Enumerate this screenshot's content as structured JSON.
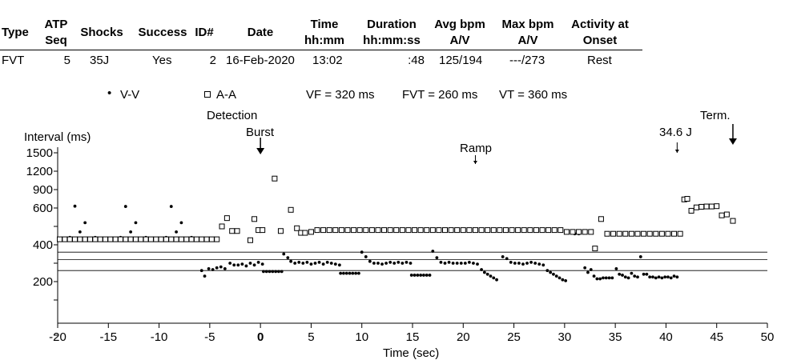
{
  "table": {
    "headers": [
      {
        "line1": "Type",
        "line2": ""
      },
      {
        "line1": "ATP",
        "line2": "Seq"
      },
      {
        "line1": "Shocks",
        "line2": ""
      },
      {
        "line1": "Success",
        "line2": ""
      },
      {
        "line1": "ID#",
        "line2": ""
      },
      {
        "line1": "Date",
        "line2": ""
      },
      {
        "line1": "Time",
        "line2": "hh:mm"
      },
      {
        "line1": "Duration",
        "line2": "hh:mm:ss"
      },
      {
        "line1": "Avg bpm",
        "line2": "A/V"
      },
      {
        "line1": "Max bpm",
        "line2": "A/V"
      },
      {
        "line1": "Activity at",
        "line2": "Onset"
      }
    ],
    "row": [
      "FVT",
      "5",
      "35J",
      "Yes",
      "2",
      "16-Feb-2020",
      "13:02",
      ":48",
      "125/194",
      "---/273",
      "Rest"
    ]
  },
  "legend": {
    "vv_label": "V-V",
    "aa_label": "A-A",
    "vf": "VF = 320 ms",
    "fvt": "FVT = 260 ms",
    "vt": "VT = 360 ms"
  },
  "annotations": {
    "detection": "Detection",
    "burst": "Burst",
    "ramp": "Ramp",
    "shock": "34.6 J",
    "term": "Term."
  },
  "chart_data": {
    "type": "scatter",
    "title": "",
    "xlabel": "Time (sec)",
    "ylabel": "Interval (ms)",
    "xlim": [
      -20,
      50
    ],
    "x_ticks": [
      -20,
      -15,
      -10,
      -5,
      0,
      5,
      10,
      15,
      20,
      25,
      30,
      35,
      40,
      45,
      50
    ],
    "y_ticks": [
      1500,
      1200,
      900,
      600,
      400,
      200
    ],
    "zone_lines_ms": [
      360,
      320,
      260
    ],
    "grid": false,
    "series": [
      {
        "name": "V-V",
        "marker": "dot",
        "points": [
          [
            -19.8,
            430
          ],
          [
            -19.3,
            430
          ],
          [
            -18.8,
            440
          ],
          [
            -18.3,
            630
          ],
          [
            -17.8,
            470
          ],
          [
            -17.3,
            520
          ],
          [
            -16.8,
            430
          ],
          [
            -16.3,
            440
          ],
          [
            -15.8,
            430
          ],
          [
            -15.3,
            430
          ],
          [
            -14.8,
            430
          ],
          [
            -14.3,
            430
          ],
          [
            -13.8,
            440
          ],
          [
            -13.3,
            625
          ],
          [
            -12.8,
            470
          ],
          [
            -12.3,
            520
          ],
          [
            -11.8,
            430
          ],
          [
            -11.3,
            440
          ],
          [
            -10.8,
            430
          ],
          [
            -10.3,
            430
          ],
          [
            -9.8,
            430
          ],
          [
            -9.3,
            440
          ],
          [
            -8.8,
            625
          ],
          [
            -8.3,
            470
          ],
          [
            -7.8,
            520
          ],
          [
            -7.3,
            430
          ],
          [
            -6.8,
            440
          ],
          [
            -6.3,
            430
          ],
          [
            -5.8,
            430
          ],
          [
            -5.8,
            260
          ],
          [
            -5.5,
            230
          ],
          [
            -5.1,
            270
          ],
          [
            -4.7,
            265
          ],
          [
            -4.3,
            275
          ],
          [
            -3.9,
            280
          ],
          [
            -3.5,
            270
          ],
          [
            -3.0,
            300
          ],
          [
            -2.6,
            290
          ],
          [
            -2.2,
            290
          ],
          [
            -1.8,
            295
          ],
          [
            -1.4,
            285
          ],
          [
            -1.0,
            300
          ],
          [
            -0.6,
            290
          ],
          [
            -0.2,
            305
          ],
          [
            0.2,
            295
          ],
          [
            0.3,
            255
          ],
          [
            0.6,
            255
          ],
          [
            0.9,
            255
          ],
          [
            1.2,
            255
          ],
          [
            1.5,
            255
          ],
          [
            1.8,
            255
          ],
          [
            2.1,
            255
          ],
          [
            2.3,
            350
          ],
          [
            2.7,
            330
          ],
          [
            3.0,
            310
          ],
          [
            3.4,
            300
          ],
          [
            3.8,
            305
          ],
          [
            4.2,
            300
          ],
          [
            4.6,
            305
          ],
          [
            5.0,
            295
          ],
          [
            5.4,
            300
          ],
          [
            5.8,
            305
          ],
          [
            6.2,
            295
          ],
          [
            6.6,
            305
          ],
          [
            7.0,
            300
          ],
          [
            7.4,
            295
          ],
          [
            7.8,
            290
          ],
          [
            7.9,
            245
          ],
          [
            8.2,
            245
          ],
          [
            8.5,
            245
          ],
          [
            8.8,
            245
          ],
          [
            9.1,
            245
          ],
          [
            9.4,
            245
          ],
          [
            9.7,
            245
          ],
          [
            10.0,
            360
          ],
          [
            10.4,
            335
          ],
          [
            10.8,
            310
          ],
          [
            11.2,
            300
          ],
          [
            11.6,
            300
          ],
          [
            12.0,
            295
          ],
          [
            12.4,
            300
          ],
          [
            12.8,
            305
          ],
          [
            13.2,
            300
          ],
          [
            13.6,
            305
          ],
          [
            14.0,
            300
          ],
          [
            14.4,
            305
          ],
          [
            14.8,
            300
          ],
          [
            14.9,
            235
          ],
          [
            15.2,
            235
          ],
          [
            15.5,
            235
          ],
          [
            15.8,
            235
          ],
          [
            16.1,
            235
          ],
          [
            16.4,
            235
          ],
          [
            16.7,
            235
          ],
          [
            17.0,
            365
          ],
          [
            17.4,
            330
          ],
          [
            17.8,
            305
          ],
          [
            18.2,
            300
          ],
          [
            18.6,
            305
          ],
          [
            19.0,
            300
          ],
          [
            19.4,
            300
          ],
          [
            19.8,
            300
          ],
          [
            20.2,
            300
          ],
          [
            20.6,
            305
          ],
          [
            21.0,
            300
          ],
          [
            21.4,
            295
          ],
          [
            21.8,
            265
          ],
          [
            22.1,
            250
          ],
          [
            22.4,
            240
          ],
          [
            22.7,
            230
          ],
          [
            23.0,
            220
          ],
          [
            23.3,
            210
          ],
          [
            23.9,
            335
          ],
          [
            24.3,
            325
          ],
          [
            24.7,
            305
          ],
          [
            25.1,
            300
          ],
          [
            25.5,
            300
          ],
          [
            25.9,
            295
          ],
          [
            26.3,
            300
          ],
          [
            26.7,
            305
          ],
          [
            27.1,
            300
          ],
          [
            27.5,
            295
          ],
          [
            27.9,
            290
          ],
          [
            28.3,
            260
          ],
          [
            28.6,
            250
          ],
          [
            28.9,
            240
          ],
          [
            29.2,
            230
          ],
          [
            29.5,
            220
          ],
          [
            29.8,
            210
          ],
          [
            30.1,
            205
          ],
          [
            31.0,
            460
          ],
          [
            31.4,
            460
          ],
          [
            32.0,
            275
          ],
          [
            32.3,
            250
          ],
          [
            32.6,
            265
          ],
          [
            32.9,
            230
          ],
          [
            33.2,
            215
          ],
          [
            33.5,
            215
          ],
          [
            33.8,
            220
          ],
          [
            34.1,
            220
          ],
          [
            34.4,
            220
          ],
          [
            34.7,
            220
          ],
          [
            35.1,
            270
          ],
          [
            35.4,
            240
          ],
          [
            35.7,
            235
          ],
          [
            36.0,
            225
          ],
          [
            36.3,
            220
          ],
          [
            36.6,
            245
          ],
          [
            36.9,
            230
          ],
          [
            37.2,
            225
          ],
          [
            37.5,
            335
          ],
          [
            37.8,
            240
          ],
          [
            38.1,
            240
          ],
          [
            38.4,
            225
          ],
          [
            38.7,
            225
          ],
          [
            39.0,
            220
          ],
          [
            39.3,
            225
          ],
          [
            39.6,
            220
          ],
          [
            39.9,
            225
          ],
          [
            40.2,
            225
          ],
          [
            40.5,
            220
          ],
          [
            40.8,
            230
          ],
          [
            41.1,
            225
          ]
        ]
      },
      {
        "name": "A-A",
        "marker": "square",
        "points": [
          [
            -19.8,
            430
          ],
          [
            -19.3,
            430
          ],
          [
            -18.8,
            430
          ],
          [
            -18.3,
            430
          ],
          [
            -17.8,
            430
          ],
          [
            -17.3,
            430
          ],
          [
            -16.8,
            430
          ],
          [
            -16.3,
            430
          ],
          [
            -15.8,
            430
          ],
          [
            -15.3,
            430
          ],
          [
            -14.8,
            430
          ],
          [
            -14.3,
            430
          ],
          [
            -13.8,
            430
          ],
          [
            -13.3,
            430
          ],
          [
            -12.8,
            430
          ],
          [
            -12.3,
            430
          ],
          [
            -11.8,
            430
          ],
          [
            -11.3,
            430
          ],
          [
            -10.8,
            430
          ],
          [
            -10.3,
            430
          ],
          [
            -9.8,
            430
          ],
          [
            -9.3,
            430
          ],
          [
            -8.8,
            430
          ],
          [
            -8.3,
            430
          ],
          [
            -7.8,
            430
          ],
          [
            -7.3,
            430
          ],
          [
            -6.8,
            430
          ],
          [
            -6.3,
            430
          ],
          [
            -5.8,
            430
          ],
          [
            -5.3,
            430
          ],
          [
            -4.8,
            430
          ],
          [
            -4.3,
            430
          ],
          [
            -3.8,
            500
          ],
          [
            -3.3,
            545
          ],
          [
            -2.8,
            475
          ],
          [
            -2.3,
            475
          ],
          [
            -1.0,
            425
          ],
          [
            -0.6,
            540
          ],
          [
            -0.2,
            480
          ],
          [
            0.2,
            480
          ],
          [
            1.4,
            1080
          ],
          [
            2.0,
            475
          ],
          [
            3.0,
            590
          ],
          [
            3.6,
            490
          ],
          [
            4.0,
            465
          ],
          [
            4.4,
            465
          ],
          [
            5.0,
            470
          ],
          [
            5.6,
            480
          ],
          [
            6.2,
            480
          ],
          [
            6.8,
            480
          ],
          [
            7.4,
            480
          ],
          [
            8.0,
            480
          ],
          [
            8.6,
            480
          ],
          [
            9.2,
            480
          ],
          [
            9.8,
            480
          ],
          [
            10.4,
            480
          ],
          [
            11.0,
            480
          ],
          [
            11.6,
            480
          ],
          [
            12.2,
            480
          ],
          [
            12.8,
            480
          ],
          [
            13.4,
            480
          ],
          [
            14.0,
            480
          ],
          [
            14.6,
            480
          ],
          [
            15.2,
            480
          ],
          [
            15.8,
            480
          ],
          [
            16.4,
            480
          ],
          [
            17.0,
            480
          ],
          [
            17.6,
            480
          ],
          [
            18.2,
            480
          ],
          [
            18.8,
            480
          ],
          [
            19.4,
            480
          ],
          [
            20.0,
            480
          ],
          [
            20.6,
            480
          ],
          [
            21.2,
            480
          ],
          [
            21.8,
            480
          ],
          [
            22.4,
            480
          ],
          [
            23.0,
            480
          ],
          [
            23.6,
            480
          ],
          [
            24.2,
            480
          ],
          [
            24.8,
            480
          ],
          [
            25.4,
            480
          ],
          [
            26.0,
            480
          ],
          [
            26.6,
            480
          ],
          [
            27.2,
            480
          ],
          [
            27.8,
            480
          ],
          [
            28.4,
            480
          ],
          [
            29.0,
            480
          ],
          [
            29.6,
            480
          ],
          [
            30.2,
            470
          ],
          [
            30.8,
            470
          ],
          [
            31.4,
            470
          ],
          [
            32.0,
            470
          ],
          [
            32.6,
            470
          ],
          [
            33.0,
            380
          ],
          [
            33.6,
            540
          ],
          [
            34.2,
            460
          ],
          [
            34.8,
            460
          ],
          [
            35.4,
            460
          ],
          [
            36.0,
            460
          ],
          [
            36.6,
            460
          ],
          [
            37.2,
            460
          ],
          [
            37.8,
            460
          ],
          [
            38.4,
            460
          ],
          [
            39.0,
            460
          ],
          [
            39.6,
            460
          ],
          [
            40.2,
            460
          ],
          [
            40.8,
            460
          ],
          [
            41.4,
            460
          ],
          [
            41.8,
            740
          ],
          [
            42.1,
            750
          ],
          [
            42.5,
            585
          ],
          [
            43.0,
            610
          ],
          [
            43.5,
            620
          ],
          [
            44.0,
            625
          ],
          [
            44.5,
            625
          ],
          [
            45.0,
            630
          ],
          [
            45.5,
            560
          ],
          [
            46.0,
            565
          ],
          [
            46.6,
            530
          ]
        ]
      }
    ]
  }
}
